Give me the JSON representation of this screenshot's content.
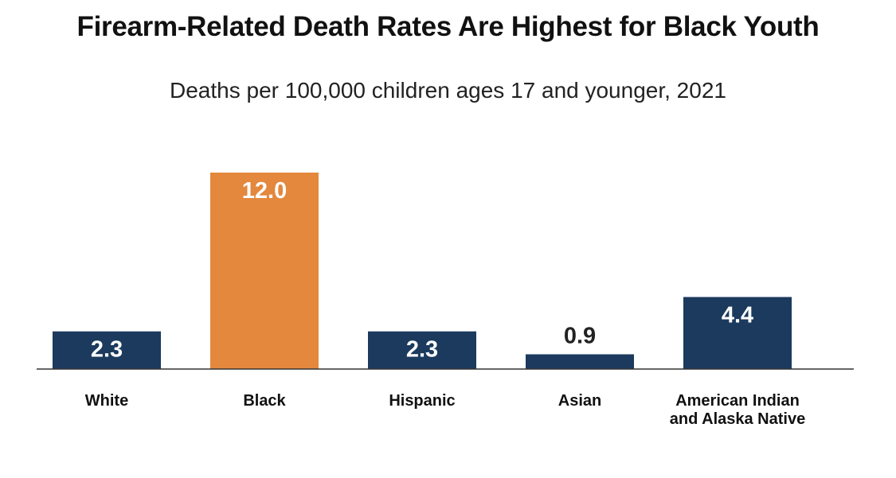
{
  "chart_data": {
    "type": "bar",
    "title": "Firearm-Related Death Rates Are Highest for Black Youth",
    "subtitle": "Deaths per 100,000 children ages 17 and younger, 2021",
    "categories": [
      "White",
      "Black",
      "Hispanic",
      "Asian",
      "American Indian and Alaska Native"
    ],
    "category_lines": [
      [
        "White"
      ],
      [
        "Black"
      ],
      [
        "Hispanic"
      ],
      [
        "Asian"
      ],
      [
        "American Indian",
        "and Alaska Native"
      ]
    ],
    "values": [
      2.3,
      12.0,
      2.3,
      0.9,
      4.4
    ],
    "value_labels": [
      "2.3",
      "12.0",
      "2.3",
      "0.9",
      "4.4"
    ],
    "bar_colors": [
      "#1b3a5e",
      "#e3883d",
      "#1b3a5e",
      "#1b3a5e",
      "#1b3a5e"
    ],
    "label_color_inside": "#ffffff",
    "label_color_outside": "#222222",
    "axis_color": "#333333",
    "xlabel": "",
    "ylabel": "",
    "ylim": [
      0,
      12
    ],
    "grid": false,
    "legend": "none"
  }
}
